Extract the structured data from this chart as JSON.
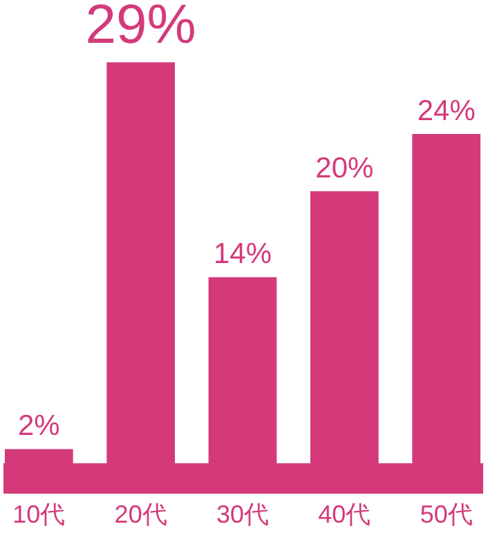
{
  "chart_data": {
    "type": "bar",
    "categories": [
      "10代",
      "20代",
      "30代",
      "40代",
      "50代"
    ],
    "values": [
      2,
      29,
      14,
      20,
      24
    ],
    "color": "#d43a7a",
    "value_labels": [
      "2%",
      "29%",
      "14%",
      "20%",
      "24%"
    ]
  }
}
